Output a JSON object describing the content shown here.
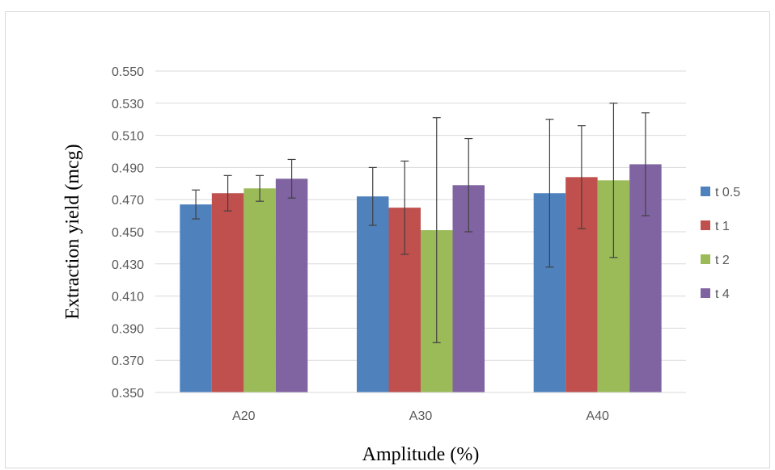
{
  "chart_data": {
    "type": "bar",
    "title": "",
    "xlabel": "Amplitude (%)",
    "ylabel": "Extraction yield (mcg)",
    "ylim": [
      0.35,
      0.55
    ],
    "ytick_step": 0.02,
    "ytick_labels": [
      "0.350",
      "0.370",
      "0.390",
      "0.410",
      "0.430",
      "0.450",
      "0.470",
      "0.490",
      "0.510",
      "0.530",
      "0.550"
    ],
    "grid": true,
    "legend_position": "right",
    "categories": [
      "A20",
      "A30",
      "A40"
    ],
    "series": [
      {
        "name": "t 0.5",
        "color": "#4F81BD",
        "values": [
          0.467,
          0.472,
          0.474
        ],
        "errors": [
          0.009,
          0.018,
          0.046
        ]
      },
      {
        "name": "t 1",
        "color": "#C0504D",
        "values": [
          0.474,
          0.465,
          0.484
        ],
        "errors": [
          0.011,
          0.029,
          0.032
        ]
      },
      {
        "name": "t 2",
        "color": "#9BBB59",
        "values": [
          0.477,
          0.451,
          0.482
        ],
        "errors": [
          0.008,
          0.07,
          0.048
        ]
      },
      {
        "name": "t 4",
        "color": "#8064A2",
        "values": [
          0.483,
          0.479,
          0.492
        ],
        "errors": [
          0.012,
          0.029,
          0.032
        ]
      }
    ]
  }
}
